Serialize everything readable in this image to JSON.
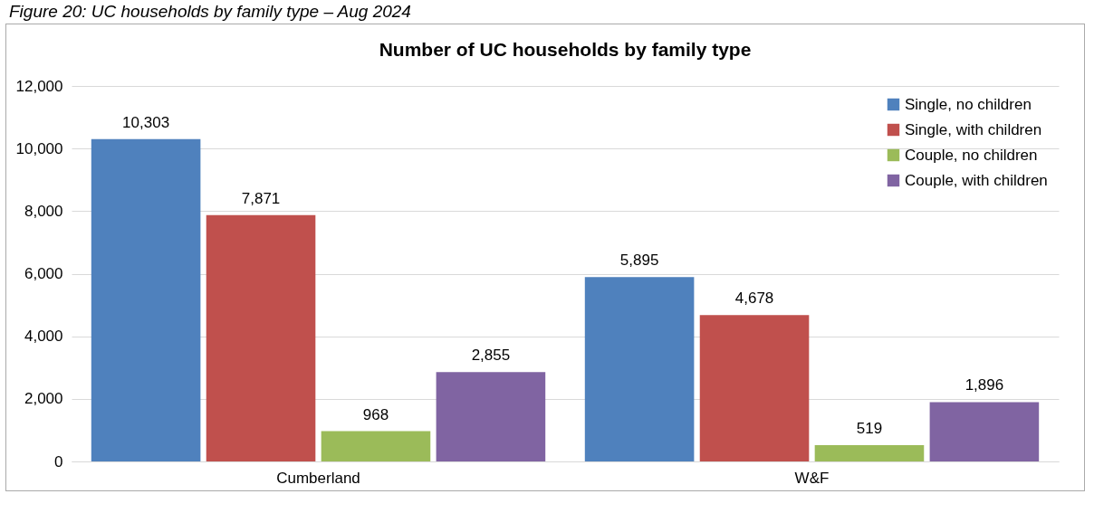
{
  "chart_data": {
    "type": "bar",
    "title": "Number of UC households by family type",
    "annotations": [
      "Figure 20: UC households by family type – Aug 2024"
    ],
    "categories": [
      "Cumberland",
      "W&F"
    ],
    "series": [
      {
        "name": "Single, no children",
        "color": "#4f81bd",
        "values": [
          10303,
          5895
        ],
        "value_labels": [
          "10,303",
          "5,895"
        ]
      },
      {
        "name": "Single, with children",
        "color": "#c0504d",
        "values": [
          7871,
          4678
        ],
        "value_labels": [
          "7,871",
          "4,678"
        ]
      },
      {
        "name": "Couple, no children",
        "color": "#9bbb59",
        "values": [
          968,
          519
        ],
        "value_labels": [
          "968",
          "519"
        ]
      },
      {
        "name": "Couple, with children",
        "color": "#8064a2",
        "values": [
          2855,
          1896
        ],
        "value_labels": [
          "2,855",
          "1,896"
        ]
      }
    ],
    "ylim": [
      0,
      12000
    ],
    "yticks": [
      0,
      {
        "value": 2000,
        "label": "2,000"
      },
      {
        "value": 4000,
        "label": "4,000"
      },
      {
        "value": 6000,
        "label": "6,000"
      },
      {
        "value": 8000,
        "label": "8,000"
      },
      {
        "value": 10000,
        "label": "10,000"
      },
      {
        "value": 12000,
        "label": "12,000"
      }
    ],
    "grid": "y",
    "legend": "top right"
  }
}
